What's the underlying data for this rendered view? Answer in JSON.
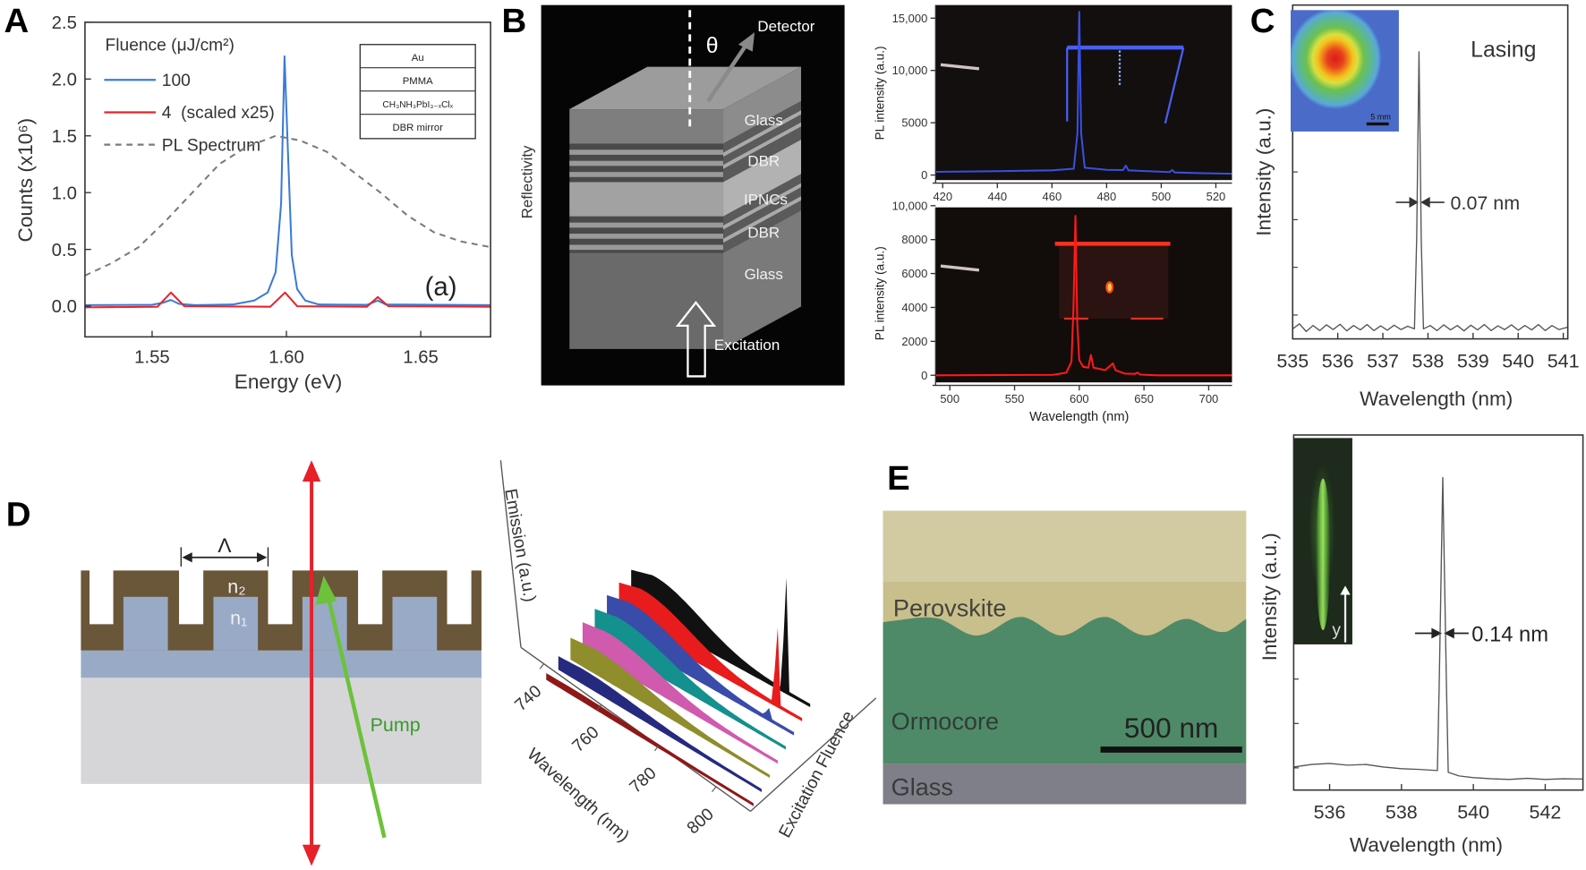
{
  "panel_labels": {
    "a": "A",
    "b": "B",
    "c": "C",
    "d": "D",
    "e": "E"
  },
  "chart_data": [
    {
      "panel": "A",
      "type": "line",
      "title": "",
      "xlabel": "Energy (eV)",
      "ylabel": "Counts (x10⁶)",
      "xlim": [
        1.525,
        1.676
      ],
      "ylim": [
        -0.27,
        2.5
      ],
      "xticks": [
        1.55,
        1.6,
        1.65
      ],
      "xtick_labels": [
        "1.55",
        "1.60",
        "1.65"
      ],
      "yticks": [
        0,
        0.5,
        1.0,
        1.5,
        2.0,
        2.5
      ],
      "ytick_labels": [
        "0.0",
        "0.5",
        "1.0",
        "1.5",
        "2.0",
        "2.5"
      ],
      "legend": {
        "title": "Fluence (μJ/cm²)",
        "placement": "top-left"
      },
      "annotation": "(a)",
      "inset_layers": [
        "Au",
        "PMMA",
        "CH₃NH₃PbI₃₋ₓClₓ",
        "DBR mirror"
      ],
      "series": [
        {
          "name": "100",
          "color": "#3b7bd4",
          "style": "solid",
          "points": [
            [
              1.525,
              0.01
            ],
            [
              1.55,
              0.012
            ],
            [
              1.554,
              0.03
            ],
            [
              1.557,
              0.055
            ],
            [
              1.56,
              0.02
            ],
            [
              1.566,
              0.01
            ],
            [
              1.58,
              0.015
            ],
            [
              1.588,
              0.05
            ],
            [
              1.593,
              0.12
            ],
            [
              1.596,
              0.3
            ],
            [
              1.598,
              0.9
            ],
            [
              1.5993,
              2.2
            ],
            [
              1.6005,
              1.4
            ],
            [
              1.602,
              0.45
            ],
            [
              1.604,
              0.15
            ],
            [
              1.607,
              0.05
            ],
            [
              1.612,
              0.015
            ],
            [
              1.63,
              0.012
            ],
            [
              1.634,
              0.05
            ],
            [
              1.637,
              0.015
            ],
            [
              1.676,
              0.01
            ]
          ]
        },
        {
          "name": "4  (scaled x25)",
          "color": "#e8242b",
          "style": "solid",
          "points": [
            [
              1.525,
              -0.01
            ],
            [
              1.552,
              -0.005
            ],
            [
              1.557,
              0.12
            ],
            [
              1.562,
              0.0
            ],
            [
              1.594,
              -0.005
            ],
            [
              1.5995,
              0.12
            ],
            [
              1.604,
              0.0
            ],
            [
              1.63,
              -0.005
            ],
            [
              1.634,
              0.08
            ],
            [
              1.638,
              0.0
            ],
            [
              1.676,
              -0.005
            ]
          ]
        },
        {
          "name": "PL Spectrum",
          "color": "#7a7a7a",
          "style": "dashed",
          "points": [
            [
              1.525,
              0.27
            ],
            [
              1.535,
              0.38
            ],
            [
              1.545,
              0.52
            ],
            [
              1.555,
              0.75
            ],
            [
              1.565,
              1.0
            ],
            [
              1.575,
              1.25
            ],
            [
              1.585,
              1.4
            ],
            [
              1.596,
              1.5
            ],
            [
              1.605,
              1.46
            ],
            [
              1.615,
              1.36
            ],
            [
              1.625,
              1.18
            ],
            [
              1.635,
              1.0
            ],
            [
              1.645,
              0.8
            ],
            [
              1.655,
              0.65
            ],
            [
              1.665,
              0.57
            ],
            [
              1.676,
              0.52
            ]
          ]
        }
      ]
    },
    {
      "panel": "B-top",
      "type": "line",
      "xlabel": "",
      "ylabel": "PL intensity (a.u.)",
      "xlim": [
        417.4,
        525.9
      ],
      "ylim": [
        -480,
        16250
      ],
      "xticks": [
        420,
        440,
        460,
        480,
        500,
        520
      ],
      "xtick_labels": [
        "420",
        "440",
        "460",
        "480",
        "500",
        "520"
      ],
      "yticks": [
        0,
        5000,
        10000,
        15000
      ],
      "ytick_labels": [
        "0",
        "5000",
        "10,000",
        "15,000"
      ],
      "series": [
        {
          "name": "blue emission",
          "color": "#3a4fe0",
          "style": "solid",
          "points": [
            [
              417.4,
              300
            ],
            [
              440,
              370
            ],
            [
              460,
              450
            ],
            [
              468,
              600
            ],
            [
              469.3,
              4000
            ],
            [
              470,
              15600
            ],
            [
              470.7,
              4000
            ],
            [
              472,
              700
            ],
            [
              480,
              500
            ],
            [
              486,
              480
            ],
            [
              487,
              900
            ],
            [
              488,
              450
            ],
            [
              503,
              280
            ],
            [
              504,
              480
            ],
            [
              505,
              250
            ],
            [
              515,
              180
            ],
            [
              525.9,
              120
            ]
          ]
        }
      ]
    },
    {
      "panel": "B-bottom",
      "type": "line",
      "xlabel": "Wavelength (nm)",
      "ylabel": "PL intensity (a.u.)",
      "xlim": [
        489,
        718
      ],
      "ylim": [
        -420,
        9900
      ],
      "xticks": [
        500,
        550,
        600,
        650,
        700
      ],
      "xtick_labels": [
        "500",
        "550",
        "600",
        "650",
        "700"
      ],
      "yticks": [
        0,
        2000,
        4000,
        6000,
        8000,
        10000
      ],
      "ytick_labels": [
        "0",
        "2000",
        "4000",
        "6000",
        "8000",
        "10,000"
      ],
      "series": [
        {
          "name": "red emission",
          "color": "#ff1a1a",
          "style": "solid",
          "points": [
            [
              489,
              0
            ],
            [
              580,
              30
            ],
            [
              590,
              150
            ],
            [
              594,
              800
            ],
            [
              595.5,
              4000
            ],
            [
              597,
              9400
            ],
            [
              598.5,
              3000
            ],
            [
              600,
              900
            ],
            [
              603,
              500
            ],
            [
              607,
              450
            ],
            [
              609,
              1200
            ],
            [
              611,
              450
            ],
            [
              620,
              300
            ],
            [
              626,
              700
            ],
            [
              628,
              300
            ],
            [
              635,
              100
            ],
            [
              643,
              80
            ],
            [
              645,
              160
            ],
            [
              647,
              40
            ],
            [
              660,
              0
            ],
            [
              718,
              0
            ]
          ]
        }
      ]
    },
    {
      "panel": "C",
      "type": "line",
      "xlabel": "Wavelength (nm)",
      "ylabel": "Intensity (a.u.)",
      "xlim": [
        535,
        541.1
      ],
      "ylim": [
        0,
        1
      ],
      "xticks": [
        535,
        536,
        537,
        538,
        539,
        540,
        541
      ],
      "xtick_labels": [
        "535",
        "536",
        "537",
        "538",
        "539",
        "540",
        "541"
      ],
      "yticks": [],
      "ytick_labels": [],
      "annotations": {
        "lasing": "Lasing",
        "fwhm": "0.07 nm"
      },
      "inset_scale_bar": "5 mm",
      "series": [
        {
          "name": "lasing spectrum",
          "color": "#555555",
          "style": "solid",
          "points": [
            [
              535,
              0.03
            ],
            [
              535.15,
              0.045
            ],
            [
              535.3,
              0.022
            ],
            [
              535.45,
              0.04
            ],
            [
              535.6,
              0.025
            ],
            [
              535.75,
              0.042
            ],
            [
              535.9,
              0.028
            ],
            [
              536.05,
              0.044
            ],
            [
              536.2,
              0.024
            ],
            [
              536.35,
              0.04
            ],
            [
              536.5,
              0.027
            ],
            [
              536.65,
              0.043
            ],
            [
              536.8,
              0.025
            ],
            [
              536.95,
              0.039
            ],
            [
              537.1,
              0.026
            ],
            [
              537.25,
              0.041
            ],
            [
              537.4,
              0.028
            ],
            [
              537.55,
              0.038
            ],
            [
              537.7,
              0.03
            ],
            [
              537.75,
              0.3
            ],
            [
              537.8,
              0.86
            ],
            [
              537.85,
              0.3
            ],
            [
              537.9,
              0.03
            ],
            [
              538.05,
              0.04
            ],
            [
              538.2,
              0.025
            ],
            [
              538.35,
              0.042
            ],
            [
              538.5,
              0.027
            ],
            [
              538.65,
              0.04
            ],
            [
              538.8,
              0.024
            ],
            [
              538.95,
              0.041
            ],
            [
              539.1,
              0.027
            ],
            [
              539.25,
              0.043
            ],
            [
              539.4,
              0.025
            ],
            [
              539.55,
              0.039
            ],
            [
              539.7,
              0.028
            ],
            [
              539.85,
              0.042
            ],
            [
              540,
              0.026
            ],
            [
              540.15,
              0.04
            ],
            [
              540.3,
              0.027
            ],
            [
              540.45,
              0.043
            ],
            [
              540.6,
              0.025
            ],
            [
              540.75,
              0.04
            ],
            [
              540.9,
              0.028
            ],
            [
              541.1,
              0.035
            ]
          ]
        }
      ]
    },
    {
      "panel": "D",
      "type": "area",
      "projection": "3d-waterfall",
      "xlabel": "Wavelength (nm)",
      "ylabel": "Emission (a.u.)",
      "zlabel": "Excitation Fluence",
      "xlim": [
        732,
        812
      ],
      "xticks": [
        740,
        760,
        780,
        800
      ],
      "xtick_labels": [
        "740",
        "760",
        "780",
        "800"
      ],
      "series": [
        {
          "name": "fluence 1",
          "color": "#8e1818",
          "relative_amplitude": 0.1,
          "lasing_peak": 0
        },
        {
          "name": "fluence 2",
          "color": "#262a7e",
          "relative_amplitude": 0.29,
          "lasing_peak": 0
        },
        {
          "name": "fluence 3",
          "color": "#8f8d2c",
          "relative_amplitude": 0.52,
          "lasing_peak": 0
        },
        {
          "name": "fluence 4",
          "color": "#d05aae",
          "relative_amplitude": 0.67,
          "lasing_peak": 0
        },
        {
          "name": "fluence 5",
          "color": "#14908e",
          "relative_amplitude": 0.76,
          "lasing_peak": 0
        },
        {
          "name": "fluence 6",
          "color": "#3a4caa",
          "relative_amplitude": 0.86,
          "lasing_peak": 0.45
        },
        {
          "name": "fluence 7",
          "color": "#e81c1c",
          "relative_amplitude": 0.93,
          "lasing_peak": 3.6
        },
        {
          "name": "fluence 8",
          "color": "#111111",
          "relative_amplitude": 1.0,
          "lasing_peak": 5.3
        }
      ]
    },
    {
      "panel": "E",
      "type": "line",
      "xlabel": "Wavelength (nm)",
      "ylabel": "Intensity (a.u.)",
      "xlim": [
        535,
        543.05
      ],
      "ylim": [
        0,
        1
      ],
      "xticks": [
        536,
        538,
        540,
        542
      ],
      "xtick_labels": [
        "536",
        "538",
        "540",
        "542"
      ],
      "yticks": [],
      "ytick_labels": [],
      "annotations": {
        "fwhm": "0.14 nm",
        "inset_axis": "y"
      },
      "series": [
        {
          "name": "lasing spectrum",
          "color": "#555555",
          "style": "solid",
          "points": [
            [
              535,
              0.065
            ],
            [
              535.5,
              0.072
            ],
            [
              536,
              0.075
            ],
            [
              536.5,
              0.07
            ],
            [
              537,
              0.072
            ],
            [
              537.5,
              0.065
            ],
            [
              538,
              0.06
            ],
            [
              538.5,
              0.058
            ],
            [
              539,
              0.055
            ],
            [
              539.05,
              0.3
            ],
            [
              539.15,
              0.88
            ],
            [
              539.25,
              0.3
            ],
            [
              539.3,
              0.05
            ],
            [
              539.6,
              0.04
            ],
            [
              540,
              0.035
            ],
            [
              540.5,
              0.032
            ],
            [
              541,
              0.03
            ],
            [
              541.5,
              0.033
            ],
            [
              542,
              0.03
            ],
            [
              542.5,
              0.032
            ],
            [
              543.05,
              0.031
            ]
          ]
        }
      ]
    }
  ],
  "diagram_b": {
    "detector": "Detector",
    "theta": "θ",
    "layers": [
      "Glass",
      "DBR",
      "IPNCs",
      "DBR",
      "Glass"
    ],
    "excitation": "Excitation",
    "reflectivity": "Reflectivity"
  },
  "diagram_d": {
    "period": "Λ",
    "n2": "n₂",
    "n1": "n₁",
    "pump": "Pump"
  },
  "sem_e": {
    "layers": [
      "Perovskite",
      "Ormocore",
      "Glass"
    ],
    "scale_bar": "500 nm"
  },
  "colors": {
    "laser_red": "#e8202a",
    "pump_green": "#6cc23a",
    "grating_brown": "#6a5638",
    "grating_blue": "#98aac6"
  }
}
